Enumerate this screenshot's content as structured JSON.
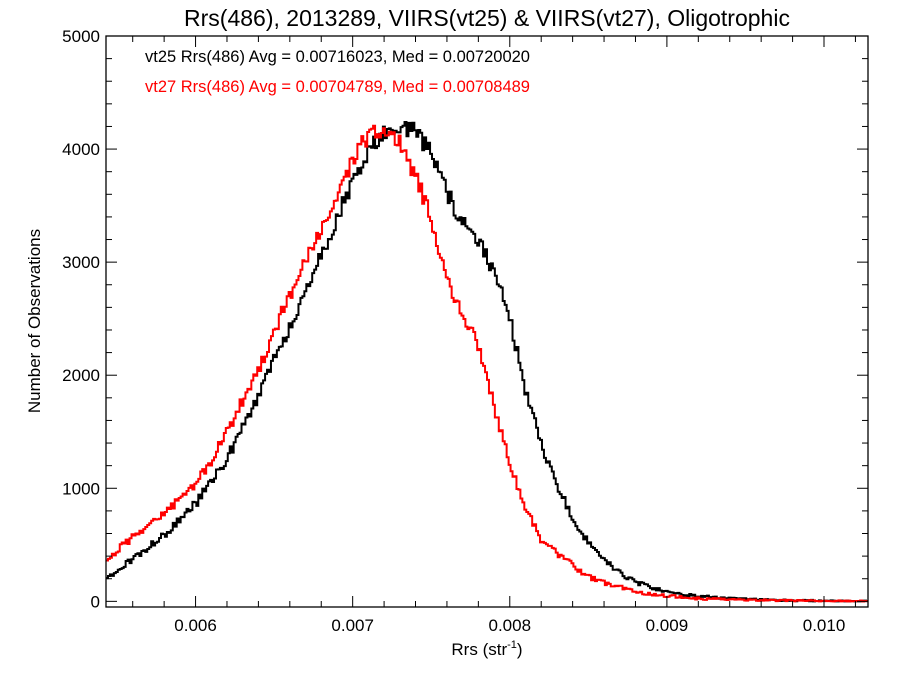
{
  "chart_data": {
    "type": "line",
    "title": "Rrs(486), 2013289, VIIRS(vt25) & VIIRS(vt27), Oligotrophic",
    "xlabel_main": "Rrs (str",
    "xlabel_sup": "-1",
    "xlabel_close": ")",
    "ylabel": "Number of Observations",
    "xlim": [
      0.00543,
      0.01028
    ],
    "ylim": [
      -50,
      5000
    ],
    "xticks": [
      {
        "value": 0.006,
        "label": "0.006"
      },
      {
        "value": 0.007,
        "label": "0.007"
      },
      {
        "value": 0.008,
        "label": "0.008"
      },
      {
        "value": 0.009,
        "label": "0.009"
      },
      {
        "value": 0.01,
        "label": "0.010"
      }
    ],
    "yticks": [
      {
        "value": 0,
        "label": "0"
      },
      {
        "value": 1000,
        "label": "1000"
      },
      {
        "value": 2000,
        "label": "2000"
      },
      {
        "value": 3000,
        "label": "3000"
      },
      {
        "value": 4000,
        "label": "4000"
      },
      {
        "value": 5000,
        "label": "5000"
      }
    ],
    "x_minor_step": 0.0002,
    "y_minor_step": 200,
    "grid": false,
    "series": [
      {
        "annotation": "vt25 Rrs(486) Avg = 0.00716023, Med = 0.00720020",
        "color": "#000000",
        "x": [
          0.00543,
          0.0055,
          0.0056,
          0.0057,
          0.0058,
          0.0059,
          0.006,
          0.0061,
          0.0062,
          0.0063,
          0.0064,
          0.0065,
          0.0066,
          0.0067,
          0.0068,
          0.0069,
          0.007,
          0.0071,
          0.0072,
          0.00725,
          0.0073,
          0.0074,
          0.0075,
          0.0076,
          0.0077,
          0.0078,
          0.0079,
          0.008,
          0.0081,
          0.0082,
          0.0083,
          0.0084,
          0.0085,
          0.0086,
          0.0087,
          0.0088,
          0.0089,
          0.009,
          0.0091,
          0.0092,
          0.0093,
          0.0094,
          0.0095,
          0.0096,
          0.0097,
          0.0098,
          0.0099,
          0.01,
          0.0101,
          0.0102,
          0.01028
        ],
        "y": [
          200,
          270,
          370,
          480,
          580,
          730,
          860,
          1060,
          1260,
          1530,
          1800,
          2130,
          2430,
          2730,
          3060,
          3390,
          3700,
          3980,
          4150,
          4200,
          4230,
          4150,
          3950,
          3620,
          3340,
          3180,
          2920,
          2500,
          1870,
          1380,
          1030,
          730,
          520,
          370,
          250,
          170,
          120,
          85,
          60,
          45,
          35,
          25,
          20,
          15,
          12,
          8,
          6,
          5,
          3,
          2,
          2
        ]
      },
      {
        "annotation": "vt27 Rrs(486) Avg = 0.00704789, Med = 0.00708489",
        "color": "#ff0000",
        "x": [
          0.00543,
          0.0055,
          0.0056,
          0.0057,
          0.0058,
          0.0059,
          0.006,
          0.0061,
          0.0062,
          0.0063,
          0.0064,
          0.0065,
          0.0066,
          0.0067,
          0.0068,
          0.0069,
          0.007,
          0.0071,
          0.0072,
          0.0073,
          0.0074,
          0.0075,
          0.0076,
          0.0077,
          0.0078,
          0.0079,
          0.008,
          0.0081,
          0.0082,
          0.0083,
          0.0084,
          0.0085,
          0.0086,
          0.0087,
          0.0088,
          0.0089,
          0.009,
          0.0091,
          0.0092,
          0.0093,
          0.0094,
          0.0095,
          0.0096,
          0.0097,
          0.0098,
          0.0099,
          0.01,
          0.0101,
          0.0102,
          0.01028
        ],
        "y": [
          330,
          450,
          570,
          680,
          780,
          900,
          1040,
          1240,
          1490,
          1780,
          2050,
          2390,
          2710,
          3000,
          3260,
          3600,
          3900,
          4120,
          4180,
          4050,
          3770,
          3400,
          2830,
          2550,
          2250,
          1720,
          1240,
          820,
          550,
          420,
          320,
          220,
          165,
          125,
          85,
          65,
          50,
          35,
          25,
          20,
          15,
          12,
          10,
          8,
          6,
          5,
          4,
          3,
          3,
          2
        ]
      }
    ]
  }
}
